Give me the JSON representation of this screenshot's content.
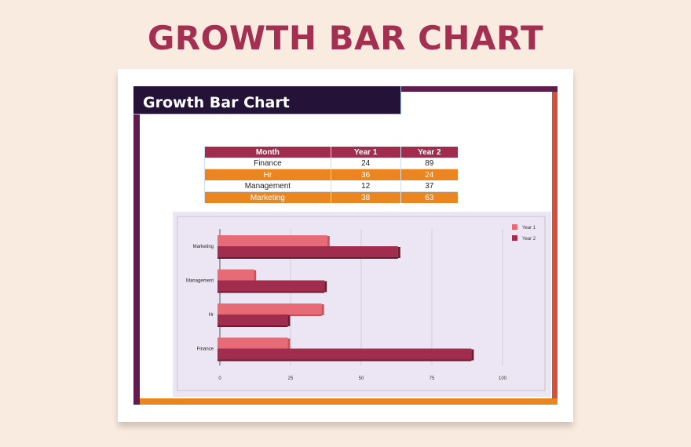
{
  "page_title": "GROWTH BAR CHART",
  "sheet_title": "Growth Bar Chart",
  "table": {
    "headers": [
      "Month",
      "Year 1",
      "Year 2"
    ],
    "rows": [
      [
        "Finance",
        "24",
        "89"
      ],
      [
        "Hr",
        "36",
        "24"
      ],
      [
        "Management",
        "12",
        "37"
      ],
      [
        "Marketing",
        "38",
        "63"
      ]
    ]
  },
  "colors": {
    "title": "#a32f51",
    "header": "#251238",
    "year1": "#e76b76",
    "year2": "#a12d4e",
    "orange": "#ea8520"
  },
  "chart_data": {
    "type": "bar",
    "orientation": "horizontal",
    "categories": [
      "Finance",
      "Hr",
      "Management",
      "Marketing"
    ],
    "series": [
      {
        "name": "Year 1",
        "values": [
          24,
          36,
          12,
          38
        ]
      },
      {
        "name": "Year 2",
        "values": [
          89,
          24,
          37,
          63
        ]
      }
    ],
    "xticks": [
      "0",
      "25",
      "50",
      "75",
      "100"
    ],
    "xlim": [
      0,
      100
    ],
    "grid": true,
    "legend": "top-right"
  }
}
